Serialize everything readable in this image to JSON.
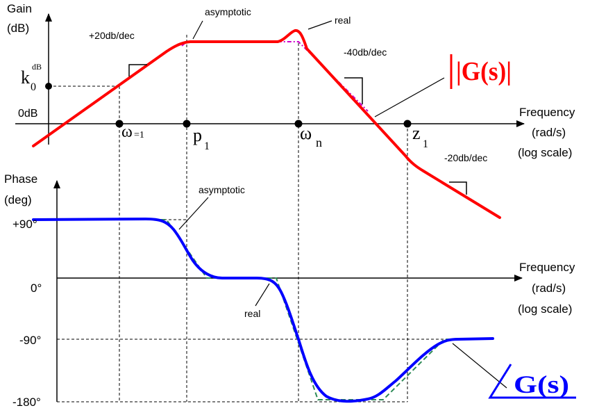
{
  "gain_plot": {
    "y_axis_label_line1": "Gain",
    "y_axis_label_line2": "(dB)",
    "x_axis_label_line1": "Frequency",
    "x_axis_label_line2": "(rad/s)",
    "x_axis_label_line3": "(log scale)",
    "zero_db_label": "0dB",
    "k0_main": "k",
    "k0_sub": "0",
    "k0_sup": "dB",
    "omega_label": "ω",
    "omega_eq": "=1",
    "p1_main": "p",
    "p1_sub": "1",
    "omegan_main": "ω",
    "omegan_sub": "n",
    "z1_main": "z",
    "z1_sub": "1",
    "slope_plus20": "+20db/dec",
    "slope_minus40": "-40db/dec",
    "slope_minus20": "-20db/dec",
    "annot_asymptotic": "asymptotic",
    "annot_real": "real",
    "title": "|G(s)|",
    "curve_color": "#ff0000",
    "asymptote_color": "#cc00cc"
  },
  "phase_plot": {
    "y_axis_label_line1": "Phase",
    "y_axis_label_line2": "(deg)",
    "x_axis_label_line1": "Frequency",
    "x_axis_label_line2": "(rad/s)",
    "x_axis_label_line3": "(log scale)",
    "tick_plus90": "+90°",
    "tick_0": "0°",
    "tick_minus90": "-90°",
    "tick_minus180": "-180°",
    "annot_asymptotic": "asymptotic",
    "annot_real": "real",
    "title": "G(s)",
    "curve_color": "#0000ff",
    "asymptote_color": "#2e8b57"
  }
}
